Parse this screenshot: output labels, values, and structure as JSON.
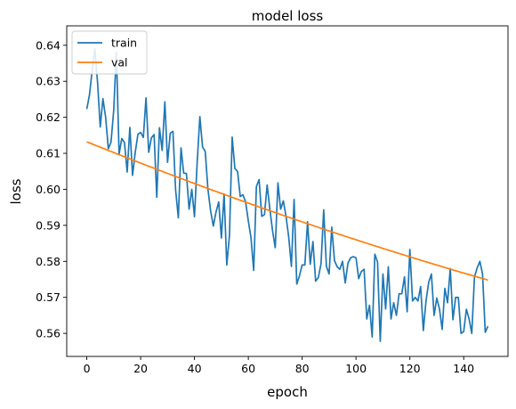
{
  "chart_data": {
    "type": "line",
    "title": "model loss",
    "xlabel": "epoch",
    "ylabel": "loss",
    "xlim": [
      -7.45,
      156.45
    ],
    "ylim": [
      0.5536,
      0.6454
    ],
    "xticks": [
      0,
      20,
      40,
      60,
      80,
      100,
      120,
      140
    ],
    "xtick_labels": [
      "0",
      "20",
      "40",
      "60",
      "80",
      "100",
      "120",
      "140"
    ],
    "yticks": [
      0.56,
      0.57,
      0.58,
      0.59,
      0.6,
      0.61,
      0.62,
      0.63,
      0.64
    ],
    "ytick_labels": [
      "0.56",
      "0.57",
      "0.58",
      "0.59",
      "0.60",
      "0.61",
      "0.62",
      "0.63",
      "0.64"
    ],
    "grid": false,
    "legend_position": "top-left",
    "series": [
      {
        "name": "train",
        "color": "#1f77b4",
        "x_start": 0,
        "x_step": 1,
        "values": [
          0.6223,
          0.6262,
          0.633,
          0.639,
          0.6297,
          0.6173,
          0.6252,
          0.62,
          0.6113,
          0.6131,
          0.6219,
          0.638,
          0.6098,
          0.6141,
          0.613,
          0.6048,
          0.6172,
          0.6039,
          0.6103,
          0.6153,
          0.6158,
          0.6144,
          0.6254,
          0.6103,
          0.6143,
          0.6152,
          0.5978,
          0.6171,
          0.6108,
          0.6243,
          0.6075,
          0.6156,
          0.6161,
          0.5998,
          0.5921,
          0.6115,
          0.6045,
          0.6044,
          0.5945,
          0.6,
          0.5924,
          0.6074,
          0.6202,
          0.6118,
          0.6105,
          0.6,
          0.594,
          0.5898,
          0.5937,
          0.5965,
          0.5865,
          0.5987,
          0.579,
          0.5873,
          0.6145,
          0.6058,
          0.605,
          0.598,
          0.5985,
          0.5965,
          0.5912,
          0.5865,
          0.5775,
          0.6008,
          0.6027,
          0.5925,
          0.593,
          0.6012,
          0.5945,
          0.5885,
          0.5838,
          0.6018,
          0.5945,
          0.5968,
          0.5925,
          0.5868,
          0.5786,
          0.5972,
          0.5737,
          0.576,
          0.579,
          0.579,
          0.591,
          0.5792,
          0.5855,
          0.5745,
          0.5755,
          0.5793,
          0.5943,
          0.5786,
          0.5765,
          0.5895,
          0.5802,
          0.5785,
          0.5778,
          0.58,
          0.574,
          0.5795,
          0.581,
          0.5813,
          0.581,
          0.5752,
          0.5772,
          0.5778,
          0.564,
          0.5678,
          0.559,
          0.582,
          0.5798,
          0.5578,
          0.5765,
          0.5668,
          0.5785,
          0.564,
          0.5685,
          0.565,
          0.571,
          0.571,
          0.5757,
          0.566,
          0.5833,
          0.569,
          0.57,
          0.569,
          0.573,
          0.5608,
          0.569,
          0.5742,
          0.5765,
          0.565,
          0.5698,
          0.5668,
          0.5611,
          0.5725,
          0.5685,
          0.578,
          0.5638,
          0.57,
          0.57,
          0.56,
          0.5605,
          0.5667,
          0.564,
          0.56,
          0.5757,
          0.5782,
          0.58,
          0.5765,
          0.5603,
          0.562
        ]
      },
      {
        "name": "val",
        "color": "#ff7f0e",
        "x_start": 0,
        "x_step": 1,
        "values_formula": "quadratic",
        "anchor_points": [
          [
            0,
            0.6132
          ],
          [
            74,
            0.5925
          ],
          [
            149,
            0.5748
          ]
        ]
      }
    ]
  }
}
